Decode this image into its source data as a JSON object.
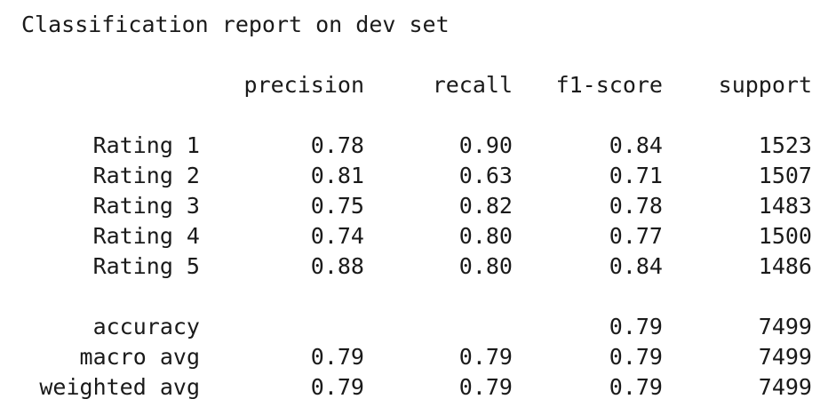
{
  "title": "Classification report on dev set",
  "headers": {
    "precision": "precision",
    "recall": "recall",
    "f1": "f1-score",
    "support": "support"
  },
  "classes": [
    {
      "label": "Rating 1",
      "precision": "0.78",
      "recall": "0.90",
      "f1": "0.84",
      "support": "1523"
    },
    {
      "label": "Rating 2",
      "precision": "0.81",
      "recall": "0.63",
      "f1": "0.71",
      "support": "1507"
    },
    {
      "label": "Rating 3",
      "precision": "0.75",
      "recall": "0.82",
      "f1": "0.78",
      "support": "1483"
    },
    {
      "label": "Rating 4",
      "precision": "0.74",
      "recall": "0.80",
      "f1": "0.77",
      "support": "1500"
    },
    {
      "label": "Rating 5",
      "precision": "0.88",
      "recall": "0.80",
      "f1": "0.84",
      "support": "1486"
    }
  ],
  "summary": [
    {
      "label": "accuracy",
      "precision": "",
      "recall": "",
      "f1": "0.79",
      "support": "7499"
    },
    {
      "label": "macro avg",
      "precision": "0.79",
      "recall": "0.79",
      "f1": "0.79",
      "support": "7499"
    },
    {
      "label": "weighted avg",
      "precision": "0.79",
      "recall": "0.79",
      "f1": "0.79",
      "support": "7499"
    }
  ]
}
